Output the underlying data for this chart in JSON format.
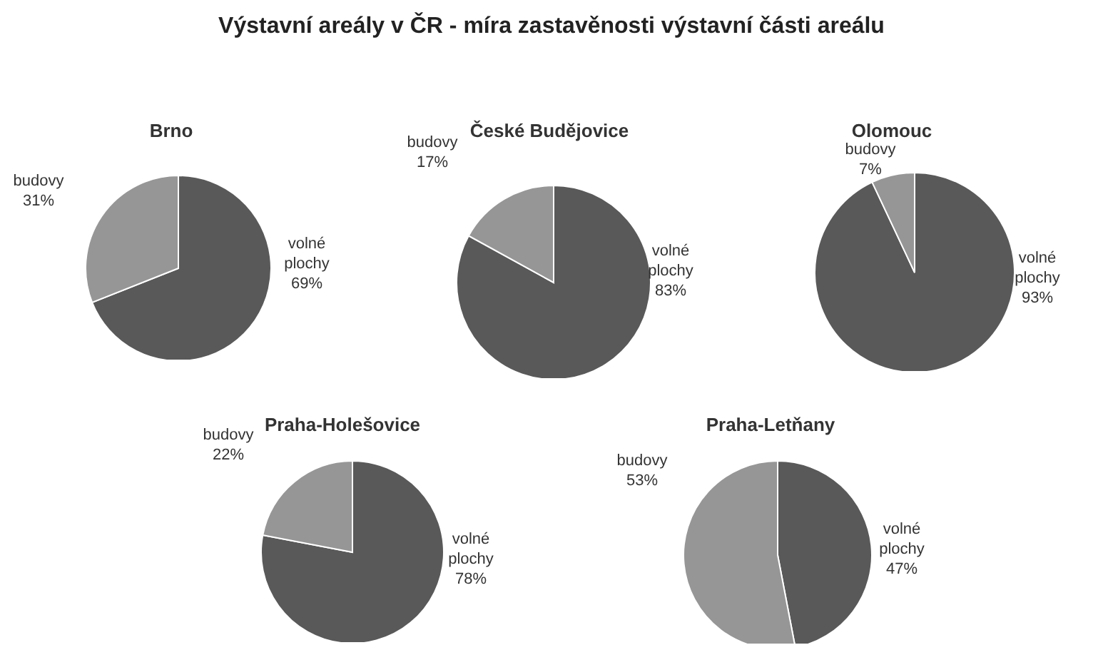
{
  "chart_data": [
    {
      "type": "other",
      "title": "Výstavní areály v ČR - míra zastavěnosti výstavní části areálu"
    },
    {
      "type": "pie",
      "title": "Brno",
      "categories": [
        "volné plochy",
        "budovy"
      ],
      "values": [
        69,
        31
      ],
      "value_labels": [
        "69%",
        "31%"
      ],
      "colors": [
        "#595959",
        "#969696"
      ]
    },
    {
      "type": "pie",
      "title": "České Budějovice",
      "categories": [
        "volné plochy",
        "budovy"
      ],
      "values": [
        83,
        17
      ],
      "value_labels": [
        "83%",
        "17%"
      ],
      "colors": [
        "#595959",
        "#969696"
      ]
    },
    {
      "type": "pie",
      "title": "Olomouc",
      "categories": [
        "volné plochy",
        "budovy"
      ],
      "values": [
        93,
        7
      ],
      "value_labels": [
        "93%",
        "7%"
      ],
      "colors": [
        "#595959",
        "#969696"
      ]
    },
    {
      "type": "pie",
      "title": "Praha-Holešovice",
      "categories": [
        "volné plochy",
        "budovy"
      ],
      "values": [
        78,
        22
      ],
      "value_labels": [
        "78%",
        "22%"
      ],
      "colors": [
        "#595959",
        "#969696"
      ]
    },
    {
      "type": "pie",
      "title": "Praha-Letňany",
      "categories": [
        "volné plochy",
        "budovy"
      ],
      "values": [
        47,
        53
      ],
      "value_labels": [
        "47%",
        "53%"
      ],
      "colors": [
        "#595959",
        "#969696"
      ]
    }
  ]
}
